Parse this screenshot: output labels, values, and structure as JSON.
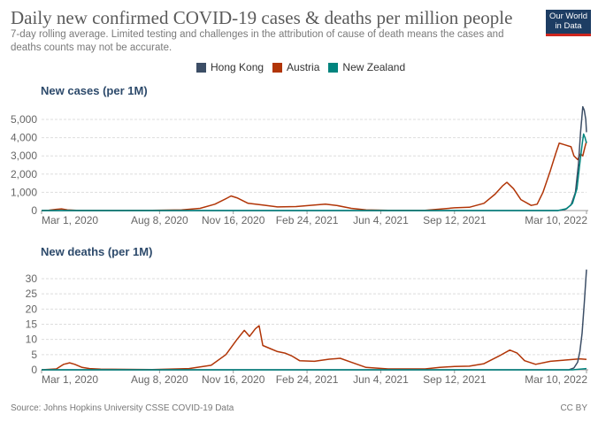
{
  "header": {
    "title": "Daily new confirmed COVID-19 cases & deaths per million people",
    "subtitle": "7-day rolling average. Limited testing and challenges in the attribution of cause of death means the cases and deaths counts may not be accurate.",
    "logo": "Our World in Data"
  },
  "footer": {
    "source": "Source: Johns Hopkins University CSSE COVID-19 Data",
    "license": "CC BY"
  },
  "chart_data": {
    "type": "line",
    "x_unit": "days since Mar 1, 2020",
    "xlim": [
      0,
      742
    ],
    "x_ticks": [
      {
        "day": 0,
        "label": "Mar 1, 2020"
      },
      {
        "day": 160,
        "label": "Aug 8, 2020"
      },
      {
        "day": 260,
        "label": "Nov 16, 2020"
      },
      {
        "day": 360,
        "label": "Feb 24, 2021"
      },
      {
        "day": 460,
        "label": "Jun 4, 2021"
      },
      {
        "day": 560,
        "label": "Sep 12, 2021"
      },
      {
        "day": 739,
        "label": "Mar 10, 2022"
      }
    ],
    "legend": [
      {
        "name": "Hong Kong",
        "color": "#3c4e66"
      },
      {
        "name": "Austria",
        "color": "#b13507"
      },
      {
        "name": "New Zealand",
        "color": "#00847e"
      }
    ],
    "panels": [
      {
        "title": "New cases (per 1M)",
        "ylim": [
          0,
          5800
        ],
        "y_ticks": [
          {
            "v": 0,
            "label": "0"
          },
          {
            "v": 1000,
            "label": "1,000"
          },
          {
            "v": 2000,
            "label": "2,000"
          },
          {
            "v": 3000,
            "label": "3,000"
          },
          {
            "v": 4000,
            "label": "4,000"
          },
          {
            "v": 5000,
            "label": "5,000"
          }
        ],
        "series": [
          {
            "name": "Austria",
            "points": [
              [
                0,
                0
              ],
              [
                10,
                20
              ],
              [
                20,
                70
              ],
              [
                27,
                90
              ],
              [
                35,
                40
              ],
              [
                50,
                5
              ],
              [
                100,
                5
              ],
              [
                150,
                15
              ],
              [
                190,
                40
              ],
              [
                215,
                120
              ],
              [
                235,
                350
              ],
              [
                250,
                650
              ],
              [
                257,
                800
              ],
              [
                265,
                700
              ],
              [
                280,
                400
              ],
              [
                300,
                300
              ],
              [
                320,
                200
              ],
              [
                345,
                220
              ],
              [
                370,
                300
              ],
              [
                385,
                350
              ],
              [
                400,
                280
              ],
              [
                420,
                120
              ],
              [
                440,
                40
              ],
              [
                470,
                10
              ],
              [
                520,
                15
              ],
              [
                540,
                80
              ],
              [
                560,
                150
              ],
              [
                580,
                180
              ],
              [
                600,
                400
              ],
              [
                615,
                900
              ],
              [
                625,
                1350
              ],
              [
                631,
                1550
              ],
              [
                640,
                1200
              ],
              [
                650,
                600
              ],
              [
                664,
                280
              ],
              [
                672,
                350
              ],
              [
                680,
                1000
              ],
              [
                690,
                2200
              ],
              [
                697,
                3100
              ],
              [
                702,
                3700
              ],
              [
                710,
                3600
              ],
              [
                718,
                3500
              ],
              [
                722,
                3000
              ],
              [
                727,
                2800
              ],
              [
                731,
                3100
              ],
              [
                734,
                3000
              ],
              [
                737,
                3500
              ],
              [
                739,
                3800
              ]
            ]
          },
          {
            "name": "Hong Kong",
            "points": [
              [
                0,
                0
              ],
              [
                700,
                0
              ],
              [
                710,
                60
              ],
              [
                718,
                300
              ],
              [
                724,
                1000
              ],
              [
                728,
                2500
              ],
              [
                731,
                4300
              ],
              [
                734,
                5700
              ],
              [
                736,
                5500
              ],
              [
                738,
                5000
              ],
              [
                739,
                4300
              ]
            ]
          },
          {
            "name": "New Zealand",
            "points": [
              [
                0,
                0
              ],
              [
                700,
                0
              ],
              [
                712,
                100
              ],
              [
                720,
                400
              ],
              [
                726,
                1200
              ],
              [
                730,
                2600
              ],
              [
                733,
                3600
              ],
              [
                735,
                4200
              ],
              [
                737,
                4000
              ],
              [
                739,
                3700
              ]
            ]
          }
        ]
      },
      {
        "title": "New deaths (per 1M)",
        "ylim": [
          0,
          34
        ],
        "y_ticks": [
          {
            "v": 0,
            "label": "0"
          },
          {
            "v": 5,
            "label": "5"
          },
          {
            "v": 10,
            "label": "10"
          },
          {
            "v": 15,
            "label": "15"
          },
          {
            "v": 20,
            "label": "20"
          },
          {
            "v": 25,
            "label": "25"
          },
          {
            "v": 30,
            "label": "30"
          }
        ],
        "series": [
          {
            "name": "Austria",
            "points": [
              [
                0,
                0
              ],
              [
                20,
                0.3
              ],
              [
                30,
                1.8
              ],
              [
                38,
                2.3
              ],
              [
                45,
                1.8
              ],
              [
                55,
                0.8
              ],
              [
                65,
                0.4
              ],
              [
                80,
                0.2
              ],
              [
                150,
                0.1
              ],
              [
                200,
                0.4
              ],
              [
                230,
                1.5
              ],
              [
                250,
                5
              ],
              [
                265,
                10
              ],
              [
                275,
                13
              ],
              [
                282,
                11
              ],
              [
                290,
                13.5
              ],
              [
                295,
                14.5
              ],
              [
                300,
                8
              ],
              [
                310,
                7
              ],
              [
                320,
                6
              ],
              [
                330,
                5.5
              ],
              [
                340,
                4.5
              ],
              [
                350,
                3
              ],
              [
                370,
                2.8
              ],
              [
                390,
                3.5
              ],
              [
                405,
                3.8
              ],
              [
                420,
                2.5
              ],
              [
                440,
                0.8
              ],
              [
                470,
                0.3
              ],
              [
                520,
                0.3
              ],
              [
                540,
                0.8
              ],
              [
                560,
                1.1
              ],
              [
                580,
                1.2
              ],
              [
                600,
                2
              ],
              [
                620,
                4.5
              ],
              [
                635,
                6.5
              ],
              [
                645,
                5.5
              ],
              [
                655,
                3
              ],
              [
                670,
                1.8
              ],
              [
                690,
                2.8
              ],
              [
                710,
                3.2
              ],
              [
                730,
                3.6
              ],
              [
                739,
                3.4
              ]
            ]
          },
          {
            "name": "Hong Kong",
            "points": [
              [
                0,
                0
              ],
              [
                715,
                0
              ],
              [
                722,
                0.6
              ],
              [
                727,
                2.5
              ],
              [
                730,
                6
              ],
              [
                733,
                12
              ],
              [
                736,
                22
              ],
              [
                739,
                33
              ]
            ]
          },
          {
            "name": "New Zealand",
            "points": [
              [
                0,
                0
              ],
              [
                720,
                0
              ],
              [
                739,
                0.4
              ]
            ]
          }
        ]
      }
    ]
  }
}
